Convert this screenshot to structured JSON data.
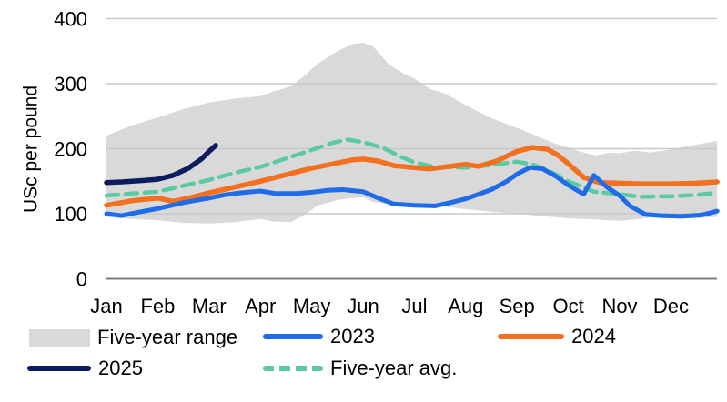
{
  "chart_data": {
    "type": "line",
    "title": "",
    "ylabel": "USc per pound",
    "y_ticks": [
      0,
      100,
      200,
      300,
      400
    ],
    "y_range": [
      0,
      400
    ],
    "x_tick_labels": [
      "Jan",
      "Feb",
      "Mar",
      "Apr",
      "May",
      "Jun",
      "Jul",
      "Aug",
      "Sep",
      "Oct",
      "Nov",
      "Dec"
    ],
    "grid": "horizontal",
    "legend_position": "bottom",
    "colors": {
      "band": "#d9d9d9",
      "gridline": "#c9c9c9",
      "axis": "#7f7f7f",
      "text": "#000000",
      "y2023": "#1e6ce8",
      "y2024": "#f3701f",
      "y2025": "#0d1c5e",
      "avg": "#5acaa2"
    },
    "band": {
      "name": "Five-year range",
      "color": "#d9d9d9",
      "points_month_low_high": [
        [
          1.0,
          95,
          220
        ],
        [
          1.5,
          92,
          236
        ],
        [
          2.0,
          90,
          248
        ],
        [
          2.5,
          86,
          261
        ],
        [
          3.0,
          85,
          271
        ],
        [
          3.5,
          87,
          277
        ],
        [
          4.0,
          92,
          281
        ],
        [
          4.25,
          88,
          288
        ],
        [
          4.6,
          87,
          296
        ],
        [
          4.9,
          100,
          315
        ],
        [
          5.1,
          112,
          330
        ],
        [
          5.5,
          121,
          350
        ],
        [
          5.8,
          124,
          361
        ],
        [
          6.0,
          125,
          363
        ],
        [
          6.2,
          118,
          357
        ],
        [
          6.5,
          115,
          330
        ],
        [
          6.8,
          112,
          315
        ],
        [
          7.0,
          111,
          308
        ],
        [
          7.3,
          112,
          292
        ],
        [
          7.6,
          111,
          285
        ],
        [
          8.0,
          107,
          267
        ],
        [
          8.5,
          103,
          247
        ],
        [
          9.0,
          100,
          232
        ],
        [
          9.4,
          97,
          219
        ],
        [
          9.7,
          95,
          209
        ],
        [
          10.0,
          93,
          202
        ],
        [
          10.3,
          92,
          194
        ],
        [
          10.55,
          91,
          190
        ],
        [
          10.8,
          90,
          194
        ],
        [
          11.0,
          89,
          193
        ],
        [
          11.3,
          91,
          197
        ],
        [
          11.6,
          94,
          194
        ],
        [
          12.0,
          97,
          199
        ],
        [
          12.4,
          93,
          205
        ],
        [
          12.9,
          95,
          212
        ]
      ]
    },
    "series": [
      {
        "name": "2023",
        "color": "#1e6ce8",
        "style": "solid",
        "points_month_value": [
          [
            1,
            100
          ],
          [
            1.3,
            97
          ],
          [
            1.6,
            102
          ],
          [
            2,
            108
          ],
          [
            2.5,
            117
          ],
          [
            3,
            124
          ],
          [
            3.3,
            129
          ],
          [
            3.6,
            132
          ],
          [
            4,
            135
          ],
          [
            4.3,
            131
          ],
          [
            4.7,
            131
          ],
          [
            5,
            133
          ],
          [
            5.3,
            136
          ],
          [
            5.6,
            137
          ],
          [
            6,
            134
          ],
          [
            6.3,
            124
          ],
          [
            6.6,
            115
          ],
          [
            7,
            113
          ],
          [
            7.4,
            112
          ],
          [
            7.7,
            117
          ],
          [
            8,
            123
          ],
          [
            8.5,
            137
          ],
          [
            8.8,
            150
          ],
          [
            9,
            161
          ],
          [
            9.25,
            171
          ],
          [
            9.5,
            169
          ],
          [
            9.75,
            158
          ],
          [
            10,
            144
          ],
          [
            10.3,
            130
          ],
          [
            10.5,
            159
          ],
          [
            10.75,
            141
          ],
          [
            11,
            128
          ],
          [
            11.2,
            112
          ],
          [
            11.5,
            99
          ],
          [
            11.8,
            97
          ],
          [
            12.2,
            96
          ],
          [
            12.6,
            98
          ],
          [
            12.9,
            104
          ]
        ]
      },
      {
        "name": "2024",
        "color": "#f3701f",
        "style": "solid",
        "points_month_value": [
          [
            1,
            113
          ],
          [
            1.5,
            120
          ],
          [
            2,
            124
          ],
          [
            2.3,
            119
          ],
          [
            2.6,
            124
          ],
          [
            3,
            132
          ],
          [
            3.5,
            141
          ],
          [
            4,
            150
          ],
          [
            4.5,
            160
          ],
          [
            5,
            170
          ],
          [
            5.5,
            178
          ],
          [
            5.8,
            183
          ],
          [
            6,
            184
          ],
          [
            6.3,
            181
          ],
          [
            6.6,
            174
          ],
          [
            7,
            171
          ],
          [
            7.3,
            169
          ],
          [
            7.6,
            172
          ],
          [
            8,
            176
          ],
          [
            8.25,
            173
          ],
          [
            8.6,
            181
          ],
          [
            9,
            196
          ],
          [
            9.3,
            202
          ],
          [
            9.6,
            199
          ],
          [
            9.8,
            190
          ],
          [
            10,
            177
          ],
          [
            10.3,
            156
          ],
          [
            10.6,
            148
          ],
          [
            11,
            147
          ],
          [
            11.4,
            146
          ],
          [
            12,
            146
          ],
          [
            12.5,
            147
          ],
          [
            12.9,
            149
          ]
        ]
      },
      {
        "name": "2025",
        "color": "#0d1c5e",
        "style": "solid",
        "points_month_value": [
          [
            1,
            148
          ],
          [
            1.3,
            149
          ],
          [
            1.7,
            151
          ],
          [
            2,
            153
          ],
          [
            2.3,
            159
          ],
          [
            2.6,
            170
          ],
          [
            2.85,
            184
          ],
          [
            3.0,
            196
          ],
          [
            3.13,
            205
          ]
        ]
      },
      {
        "name": "Five-year avg.",
        "color": "#5acaa2",
        "style": "dashed",
        "points_month_value": [
          [
            1,
            128
          ],
          [
            1.5,
            131
          ],
          [
            2,
            134
          ],
          [
            2.5,
            143
          ],
          [
            3,
            152
          ],
          [
            3.5,
            163
          ],
          [
            4,
            172
          ],
          [
            4.5,
            185
          ],
          [
            5,
            198
          ],
          [
            5.4,
            209
          ],
          [
            5.7,
            214
          ],
          [
            6,
            210
          ],
          [
            6.4,
            201
          ],
          [
            6.7,
            189
          ],
          [
            7,
            179
          ],
          [
            7.4,
            172
          ],
          [
            8,
            171
          ],
          [
            8.5,
            175
          ],
          [
            9,
            180
          ],
          [
            9.3,
            176
          ],
          [
            9.6,
            167
          ],
          [
            10,
            150
          ],
          [
            10.5,
            134
          ],
          [
            11,
            130
          ],
          [
            11.4,
            126
          ],
          [
            12,
            127
          ],
          [
            12.5,
            129
          ],
          [
            12.9,
            132
          ]
        ]
      }
    ]
  }
}
